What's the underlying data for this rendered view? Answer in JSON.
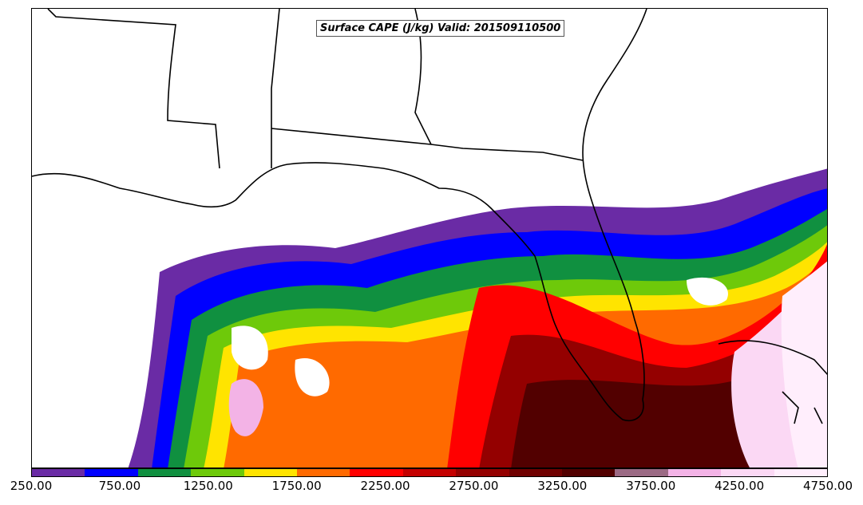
{
  "map": {
    "title": "Surface CAPE (J/kg) Valid: 201509110500",
    "variable": "Surface CAPE",
    "units": "J/kg",
    "valid_time": "201509110500"
  },
  "colorbar": {
    "colors": [
      "#6a2ba5",
      "#0000ff",
      "#109040",
      "#6ec90a",
      "#ffe400",
      "#ff6a00",
      "#ff0000",
      "#c40000",
      "#940000",
      "#700000",
      "#520000",
      "#9b6a84",
      "#f3b3e6",
      "#fbd8f4",
      "#ffeefc"
    ],
    "tick_labels": [
      "250.00",
      "750.00",
      "1250.00",
      "1750.00",
      "2250.00",
      "2750.00",
      "3250.00",
      "3750.00",
      "4250.00",
      "4750.00"
    ]
  }
}
